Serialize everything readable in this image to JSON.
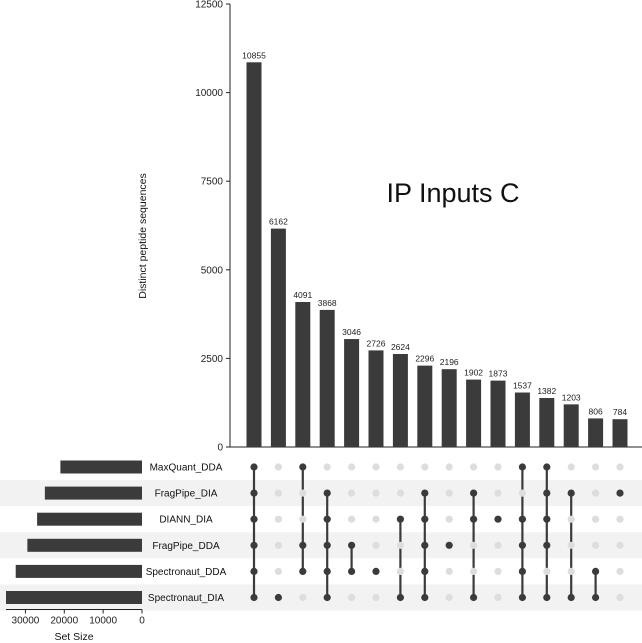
{
  "chart_data": {
    "type": "upset",
    "title": "IP Inputs C",
    "ylabel": "Distinct peptide sequences",
    "xlabel_sets": "Set Size",
    "ylim": [
      0,
      12500
    ],
    "yticks": [
      0,
      2500,
      5000,
      7500,
      10000,
      12500
    ],
    "set_size_ticks": [
      30000,
      20000,
      10000,
      0
    ],
    "sets": [
      {
        "name": "MaxQuant_DDA",
        "size": 21000
      },
      {
        "name": "FragPipe_DIA",
        "size": 25000
      },
      {
        "name": "DIANN_DIA",
        "size": 27000
      },
      {
        "name": "FragPipe_DDA",
        "size": 29500
      },
      {
        "name": "Spectronaut_DDA",
        "size": 32500
      },
      {
        "name": "Spectronaut_DIA",
        "size": 35000
      }
    ],
    "intersections": [
      {
        "value": 10855,
        "sets": [
          "MaxQuant_DDA",
          "FragPipe_DIA",
          "DIANN_DIA",
          "FragPipe_DDA",
          "Spectronaut_DDA",
          "Spectronaut_DIA"
        ]
      },
      {
        "value": 6162,
        "sets": [
          "Spectronaut_DIA"
        ]
      },
      {
        "value": 4091,
        "sets": [
          "MaxQuant_DDA",
          "FragPipe_DDA",
          "Spectronaut_DDA"
        ]
      },
      {
        "value": 3868,
        "sets": [
          "FragPipe_DIA",
          "DIANN_DIA",
          "FragPipe_DDA",
          "Spectronaut_DDA",
          "Spectronaut_DIA"
        ]
      },
      {
        "value": 3046,
        "sets": [
          "FragPipe_DDA",
          "Spectronaut_DDA"
        ]
      },
      {
        "value": 2726,
        "sets": [
          "Spectronaut_DDA"
        ]
      },
      {
        "value": 2624,
        "sets": [
          "DIANN_DIA",
          "Spectronaut_DIA"
        ]
      },
      {
        "value": 2296,
        "sets": [
          "FragPipe_DIA",
          "DIANN_DIA",
          "FragPipe_DDA",
          "Spectronaut_DDA",
          "Spectronaut_DIA"
        ]
      },
      {
        "value": 2196,
        "sets": [
          "FragPipe_DDA"
        ]
      },
      {
        "value": 1902,
        "sets": [
          "FragPipe_DIA",
          "DIANN_DIA",
          "Spectronaut_DIA"
        ]
      },
      {
        "value": 1873,
        "sets": [
          "DIANN_DIA"
        ]
      },
      {
        "value": 1537,
        "sets": [
          "MaxQuant_DDA",
          "DIANN_DIA",
          "FragPipe_DDA",
          "Spectronaut_DDA",
          "Spectronaut_DIA"
        ]
      },
      {
        "value": 1382,
        "sets": [
          "MaxQuant_DDA",
          "FragPipe_DIA",
          "DIANN_DIA",
          "FragPipe_DDA",
          "Spectronaut_DIA"
        ]
      },
      {
        "value": 1203,
        "sets": [
          "FragPipe_DIA",
          "Spectronaut_DIA"
        ]
      },
      {
        "value": 806,
        "sets": [
          "Spectronaut_DDA",
          "Spectronaut_DIA"
        ]
      },
      {
        "value": 784,
        "sets": [
          "FragPipe_DIA"
        ]
      }
    ],
    "colors": {
      "bar": "#3b3b3b",
      "dot_active": "#3b3b3b",
      "dot_inactive": "#dddddd",
      "stripe": "#f2f2f2",
      "axis": "#222222"
    }
  }
}
